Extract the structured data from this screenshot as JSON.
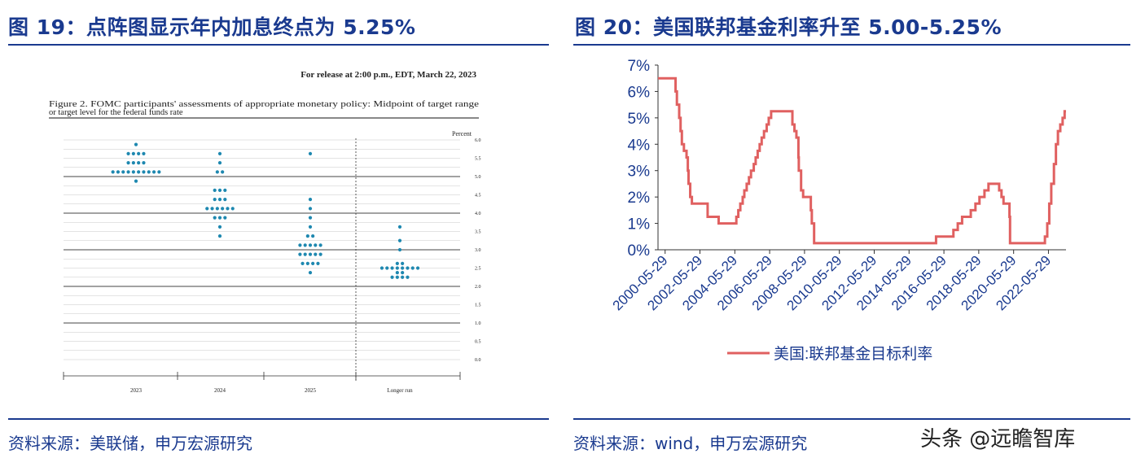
{
  "left": {
    "title": "图 19：点阵图显示年内加息终点为 5.25%",
    "source": "资料来源：美联储，申万宏源研究",
    "chart_data": {
      "type": "scatter",
      "release": "For release at 2:00 p.m., EDT, March 22, 2023",
      "caption_lines": [
        "Figure 2.  FOMC participants' assessments of appropriate monetary policy:  Midpoint of target range",
        "or target level for the federal funds rate"
      ],
      "yunit": "Percent",
      "ylim": [
        0,
        6
      ],
      "yticks": [
        "6.0",
        "5.5",
        "5.0",
        "4.5",
        "4.0",
        "3.5",
        "3.0",
        "2.5",
        "2.0",
        "1.5",
        "1.0",
        "0.5",
        "0.0"
      ],
      "categories": [
        "2023",
        "2024",
        "2025",
        "Longer run"
      ],
      "dots": [
        {
          "category": "2023",
          "rates": [
            {
              "y": 5.875,
              "n": 1
            },
            {
              "y": 5.625,
              "n": 4
            },
            {
              "y": 5.375,
              "n": 4
            },
            {
              "y": 5.125,
              "n": 10
            },
            {
              "y": 4.875,
              "n": 1
            }
          ]
        },
        {
          "category": "2024",
          "rates": [
            {
              "y": 5.625,
              "n": 1
            },
            {
              "y": 5.375,
              "n": 1
            },
            {
              "y": 5.125,
              "n": 2
            },
            {
              "y": 4.625,
              "n": 3
            },
            {
              "y": 4.375,
              "n": 3
            },
            {
              "y": 4.125,
              "n": 6
            },
            {
              "y": 3.875,
              "n": 3
            },
            {
              "y": 3.625,
              "n": 1
            },
            {
              "y": 3.375,
              "n": 1
            }
          ]
        },
        {
          "category": "2025",
          "rates": [
            {
              "y": 5.625,
              "n": 1
            },
            {
              "y": 4.375,
              "n": 1
            },
            {
              "y": 4.125,
              "n": 1
            },
            {
              "y": 3.875,
              "n": 1
            },
            {
              "y": 3.625,
              "n": 1
            },
            {
              "y": 3.375,
              "n": 2
            },
            {
              "y": 3.125,
              "n": 5
            },
            {
              "y": 2.875,
              "n": 5
            },
            {
              "y": 2.625,
              "n": 4
            },
            {
              "y": 2.375,
              "n": 1
            }
          ]
        },
        {
          "category": "Longer run",
          "rates": [
            {
              "y": 3.625,
              "n": 1
            },
            {
              "y": 3.25,
              "n": 1
            },
            {
              "y": 3.0,
              "n": 1
            },
            {
              "y": 2.625,
              "n": 2
            },
            {
              "y": 2.5,
              "n": 8
            },
            {
              "y": 2.375,
              "n": 2
            },
            {
              "y": 2.25,
              "n": 4
            }
          ]
        }
      ]
    }
  },
  "right": {
    "title": "图 20：美国联邦基金利率升至 5.00-5.25%",
    "source": "资料来源：wind，申万宏源研究",
    "chart_data": {
      "type": "line",
      "ylim": [
        0,
        7
      ],
      "yticks": [
        "0%",
        "1%",
        "2%",
        "3%",
        "4%",
        "5%",
        "6%",
        "7%"
      ],
      "xlim": [
        "2000-01-01",
        "2023-06-01"
      ],
      "xticks": [
        "2000-05-29",
        "2002-05-29",
        "2004-05-29",
        "2006-05-29",
        "2008-05-29",
        "2010-05-29",
        "2012-05-29",
        "2014-05-29",
        "2016-05-29",
        "2018-05-29",
        "2020-05-29",
        "2022-05-29"
      ],
      "line_color": "#e06060",
      "series": [
        {
          "name": "美国:联邦基金目标利率",
          "points": [
            [
              "2000-01-01",
              6.5
            ],
            [
              "2000-12-31",
              6.5
            ],
            [
              "2001-01-03",
              6.0
            ],
            [
              "2001-01-31",
              5.5
            ],
            [
              "2001-03-20",
              5.0
            ],
            [
              "2001-04-18",
              4.5
            ],
            [
              "2001-05-15",
              4.0
            ],
            [
              "2001-06-27",
              3.75
            ],
            [
              "2001-08-21",
              3.5
            ],
            [
              "2001-09-17",
              3.0
            ],
            [
              "2001-10-02",
              2.5
            ],
            [
              "2001-11-06",
              2.0
            ],
            [
              "2001-12-11",
              1.75
            ],
            [
              "2002-11-06",
              1.25
            ],
            [
              "2003-06-25",
              1.0
            ],
            [
              "2004-06-30",
              1.25
            ],
            [
              "2004-08-10",
              1.5
            ],
            [
              "2004-09-21",
              1.75
            ],
            [
              "2004-11-10",
              2.0
            ],
            [
              "2004-12-14",
              2.25
            ],
            [
              "2005-02-02",
              2.5
            ],
            [
              "2005-03-22",
              2.75
            ],
            [
              "2005-05-03",
              3.0
            ],
            [
              "2005-06-30",
              3.25
            ],
            [
              "2005-08-09",
              3.5
            ],
            [
              "2005-09-20",
              3.75
            ],
            [
              "2005-11-01",
              4.0
            ],
            [
              "2005-12-13",
              4.25
            ],
            [
              "2006-01-31",
              4.5
            ],
            [
              "2006-03-28",
              4.75
            ],
            [
              "2006-05-10",
              5.0
            ],
            [
              "2006-06-29",
              5.25
            ],
            [
              "2007-09-18",
              4.75
            ],
            [
              "2007-10-31",
              4.5
            ],
            [
              "2007-12-11",
              4.25
            ],
            [
              "2008-01-22",
              3.5
            ],
            [
              "2008-01-30",
              3.0
            ],
            [
              "2008-03-18",
              2.25
            ],
            [
              "2008-04-30",
              2.0
            ],
            [
              "2008-10-08",
              1.5
            ],
            [
              "2008-10-29",
              1.0
            ],
            [
              "2008-12-16",
              0.25
            ],
            [
              "2015-12-16",
              0.5
            ],
            [
              "2016-12-14",
              0.75
            ],
            [
              "2017-03-15",
              1.0
            ],
            [
              "2017-06-14",
              1.25
            ],
            [
              "2017-12-13",
              1.5
            ],
            [
              "2018-03-21",
              1.75
            ],
            [
              "2018-06-13",
              2.0
            ],
            [
              "2018-09-26",
              2.25
            ],
            [
              "2018-12-19",
              2.5
            ],
            [
              "2019-07-31",
              2.25
            ],
            [
              "2019-09-18",
              2.0
            ],
            [
              "2019-10-30",
              1.75
            ],
            [
              "2020-03-03",
              1.25
            ],
            [
              "2020-03-15",
              0.25
            ],
            [
              "2022-03-16",
              0.5
            ],
            [
              "2022-05-04",
              1.0
            ],
            [
              "2022-06-15",
              1.75
            ],
            [
              "2022-07-27",
              2.5
            ],
            [
              "2022-09-21",
              3.25
            ],
            [
              "2022-11-02",
              4.0
            ],
            [
              "2022-12-14",
              4.5
            ],
            [
              "2023-02-01",
              4.75
            ],
            [
              "2023-03-22",
              5.0
            ],
            [
              "2023-05-03",
              5.25
            ]
          ]
        }
      ]
    }
  },
  "watermark": "头条 @远瞻智库"
}
